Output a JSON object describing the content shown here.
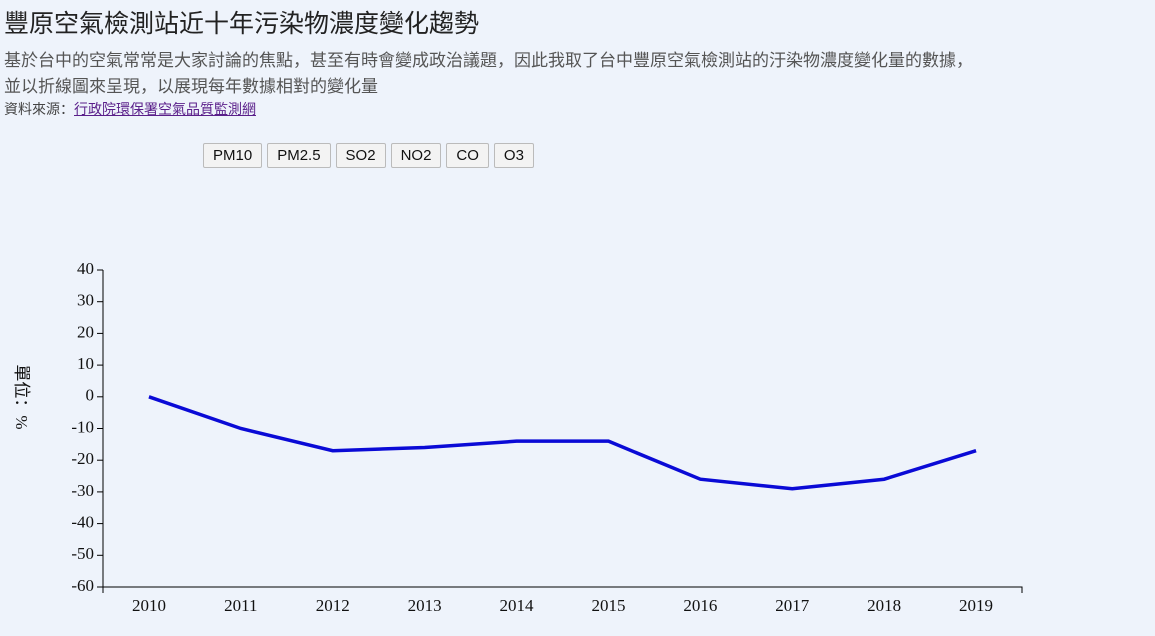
{
  "page": {
    "title": "豐原空氣檢測站近十年污染物濃度變化趨勢",
    "description": [
      "基於台中的空氣常常是大家討論的焦點，甚至有時會變成政治議題，因此我取了台中豐原空氣檢測站的汙染物濃度變化量的數據，",
      "並以折線圖來呈現，以展現每年數據相對的變化量"
    ],
    "source_label": "資料來源：",
    "source_link": "行政院環保署空氣品質監測網",
    "buttons": [
      "PM10",
      "PM2.5",
      "SO2",
      "NO2",
      "CO",
      "O3"
    ]
  },
  "chart_data": {
    "type": "line",
    "y_label": "單位：%",
    "categories": [
      "2010",
      "2011",
      "2012",
      "2013",
      "2014",
      "2015",
      "2016",
      "2017",
      "2018",
      "2019"
    ],
    "series": [
      {
        "name": "PM10",
        "color": "#0a0ad6",
        "values": [
          0,
          -10,
          -17,
          -16,
          -14,
          -14,
          -26,
          -29,
          -26,
          -17
        ]
      }
    ],
    "ylim": [
      -60,
      40
    ],
    "yticks": [
      -60,
      -50,
      -40,
      -30,
      -20,
      -10,
      0,
      10,
      20,
      30,
      40
    ],
    "grid": false
  }
}
